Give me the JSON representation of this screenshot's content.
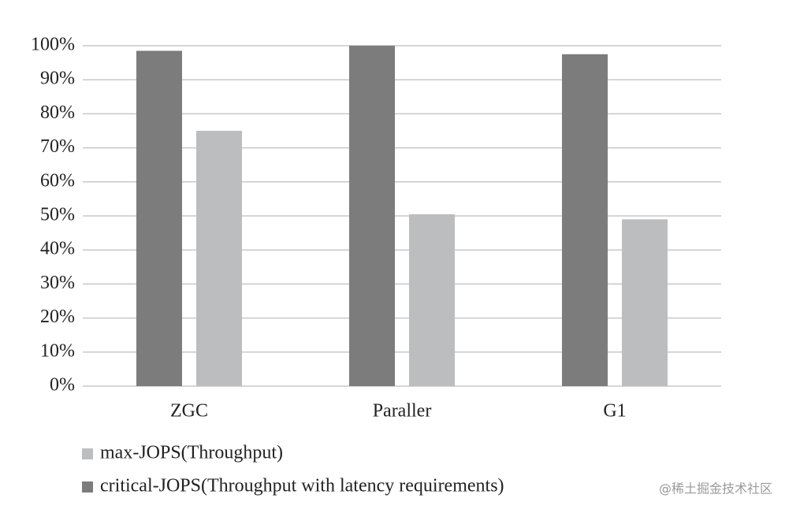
{
  "chart_data": {
    "type": "bar",
    "categories": [
      "ZGC",
      "Paraller",
      "G1"
    ],
    "series": [
      {
        "name": "critical-JOPS(Throughput with latency requirements)",
        "color": "#7b7c7b",
        "values": [
          98.5,
          100,
          97.5
        ]
      },
      {
        "name": "max-JOPS(Throughput)",
        "color": "#bcbdbe",
        "values": [
          75,
          50.5,
          49
        ]
      }
    ],
    "ylim": [
      0,
      100
    ],
    "yticks": [
      {
        "value": 0,
        "label": "0%"
      },
      {
        "value": 10,
        "label": "10%"
      },
      {
        "value": 20,
        "label": "20%"
      },
      {
        "value": 30,
        "label": "30%"
      },
      {
        "value": 40,
        "label": "40%"
      },
      {
        "value": 50,
        "label": "50%"
      },
      {
        "value": 60,
        "label": "60%"
      },
      {
        "value": 70,
        "label": "70%"
      },
      {
        "value": 80,
        "label": "80%"
      },
      {
        "value": 90,
        "label": "90%"
      },
      {
        "value": 100,
        "label": "100%"
      }
    ],
    "grid": true,
    "legend": "bottom",
    "watermark": "@稀土掘金技术社区"
  }
}
